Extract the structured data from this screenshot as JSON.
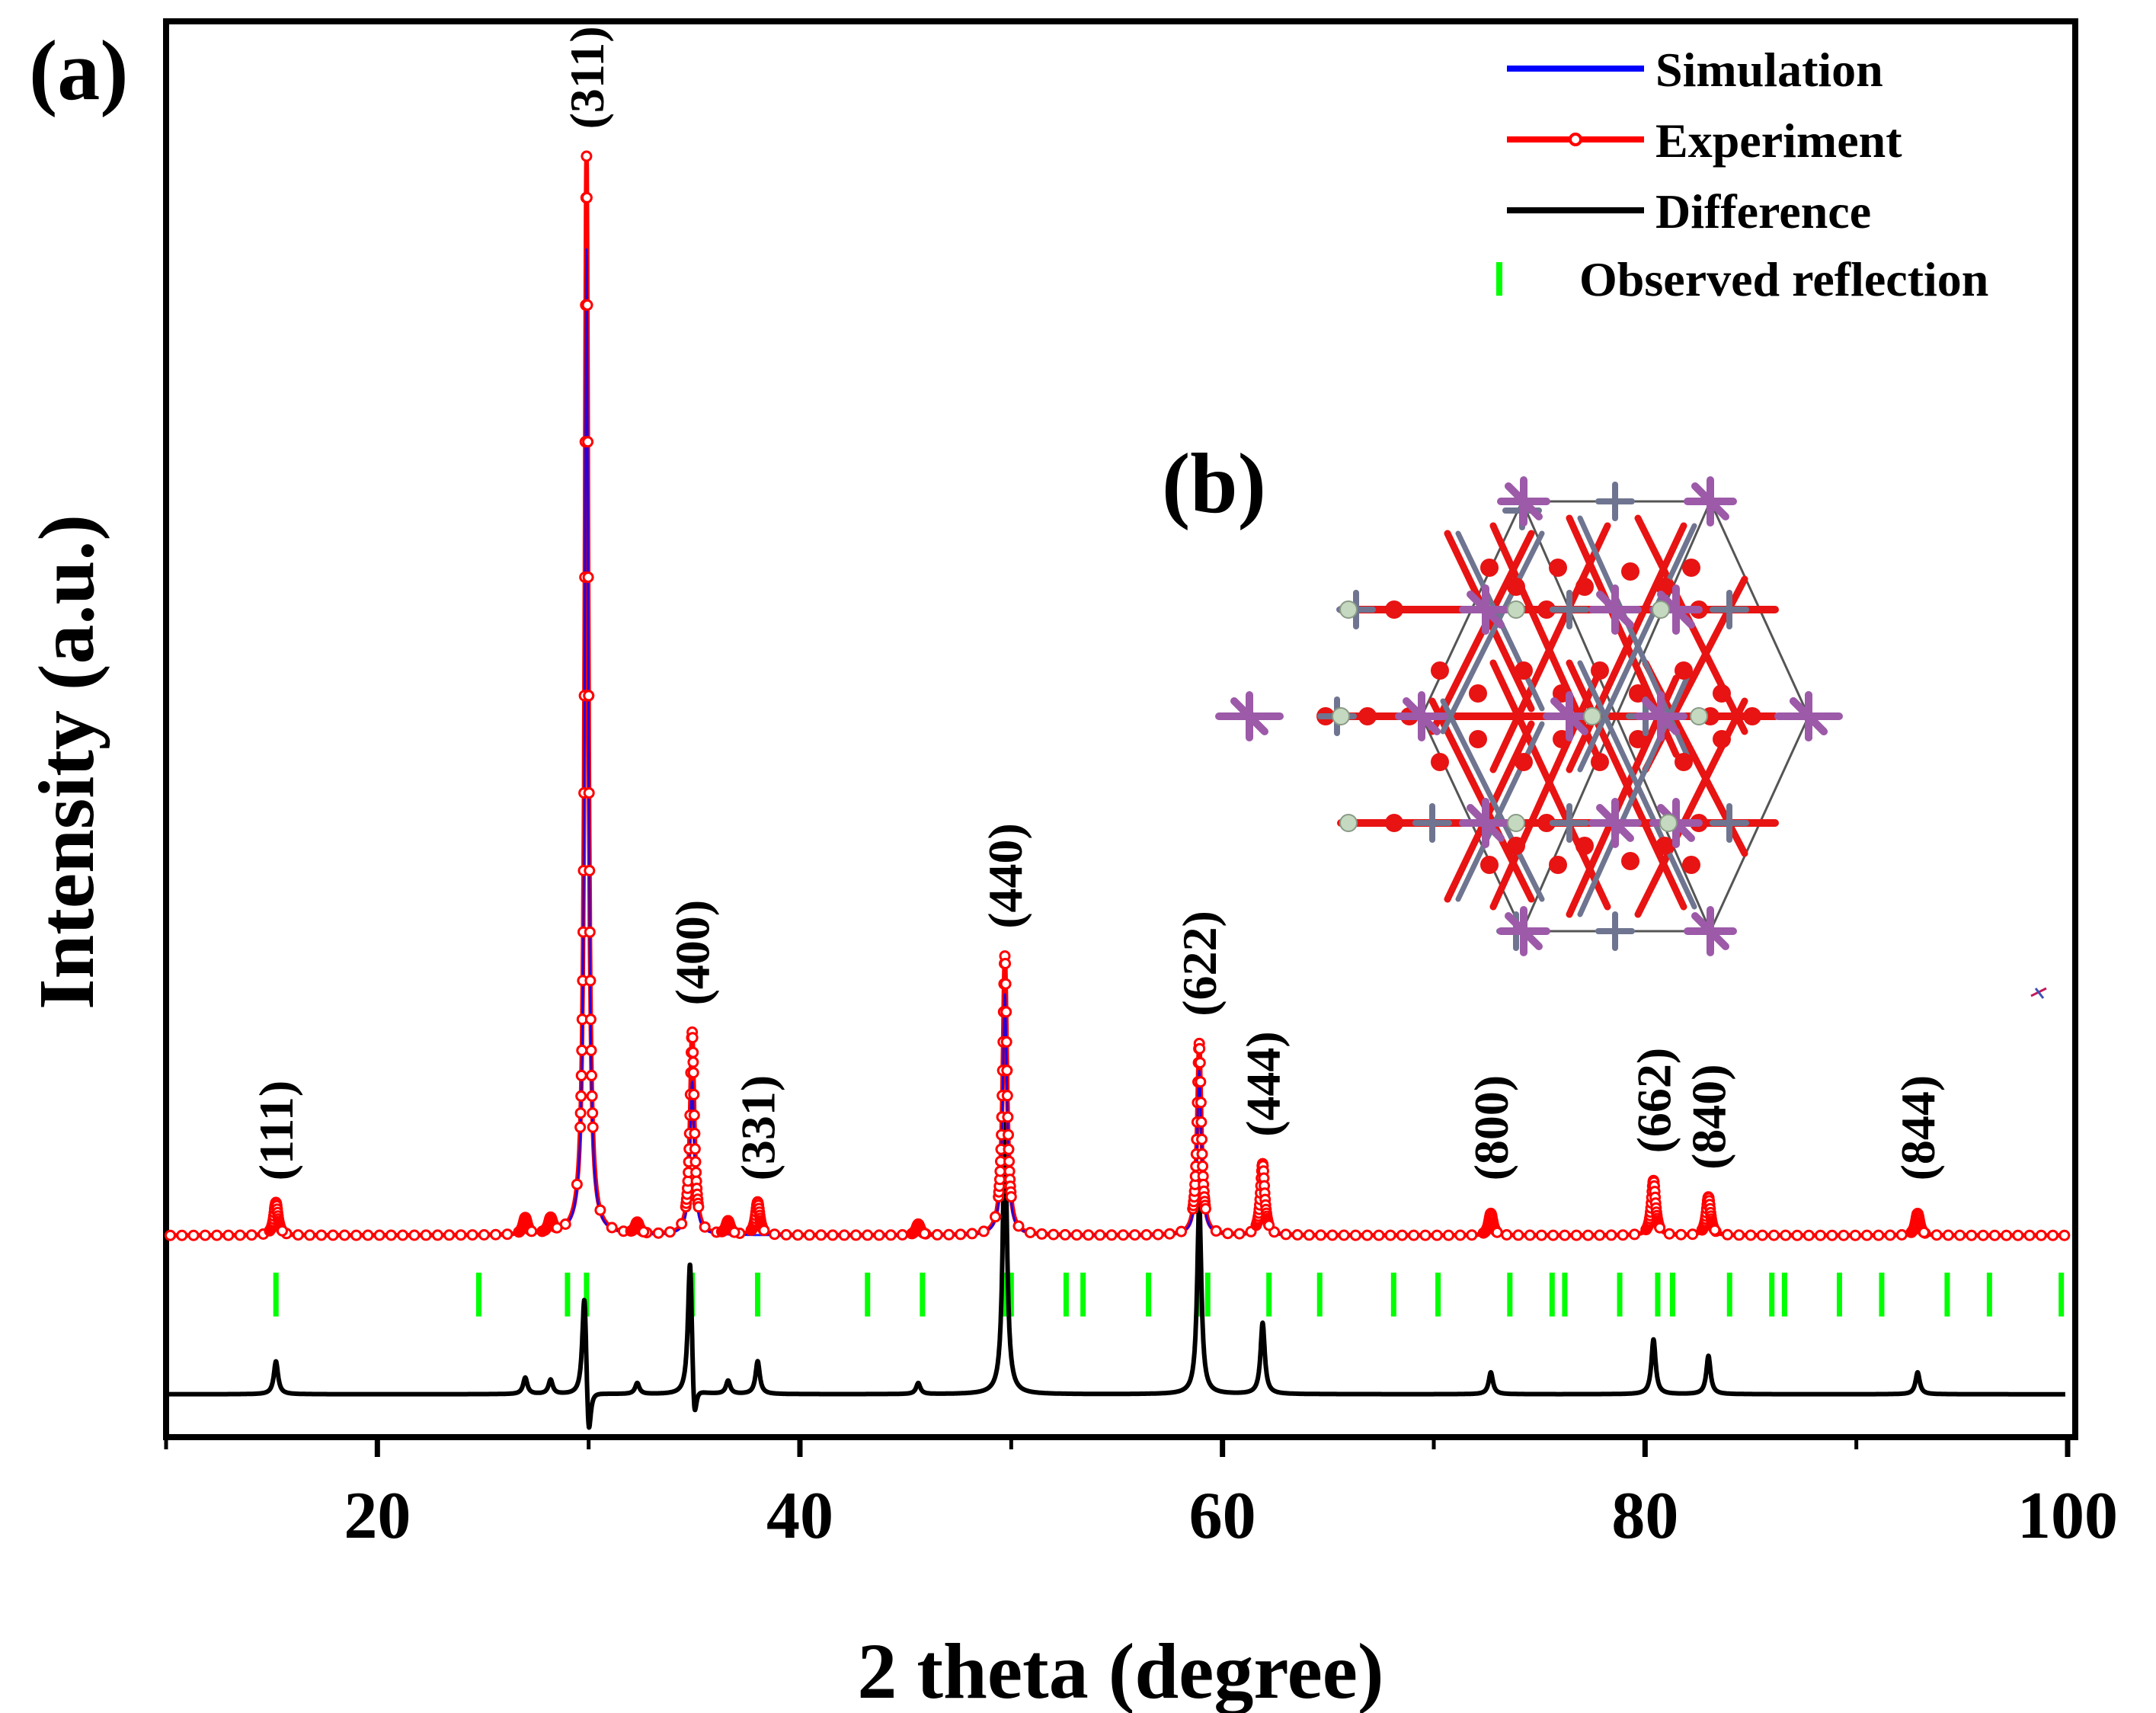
{
  "chart_data": {
    "type": "line",
    "panel_label_a": "(a)",
    "panel_label_b": "(b)",
    "xlabel": "2 theta (degree)",
    "ylabel": "Intensity (a.u.)",
    "xlim": [
      10,
      100
    ],
    "ylim": [
      -18,
      110
    ],
    "x_ticks": [
      20,
      40,
      60,
      80,
      100
    ],
    "x_tick_labels": [
      "20",
      "40",
      "60",
      "80",
      "100"
    ],
    "y_ticks_shown": false,
    "legend": {
      "position": "top-right",
      "entries": [
        {
          "name": "Simulation",
          "color": "#0000ff",
          "marker": "line"
        },
        {
          "name": "Experiment",
          "color": "#ff0000",
          "marker": "line-circle"
        },
        {
          "name": "Difference",
          "color": "#000000",
          "marker": "line"
        },
        {
          "name": "Observed reflection",
          "color": "#00ff00",
          "marker": "vertical-bar"
        }
      ]
    },
    "series": [
      {
        "name": "Experiment",
        "color": "#ff0000",
        "baseline": 0,
        "peaks": [
          {
            "x": 15.2,
            "h": 3.0
          },
          {
            "x": 27.0,
            "h": 1.5
          },
          {
            "x": 28.2,
            "h": 1.3
          },
          {
            "x": 29.9,
            "h": 98.5
          },
          {
            "x": 32.3,
            "h": 1.0
          },
          {
            "x": 34.9,
            "h": 18.5
          },
          {
            "x": 36.6,
            "h": 1.2
          },
          {
            "x": 38.0,
            "h": 3.0
          },
          {
            "x": 45.6,
            "h": 1.0
          },
          {
            "x": 49.7,
            "h": 25.5
          },
          {
            "x": 58.9,
            "h": 17.5
          },
          {
            "x": 61.9,
            "h": 6.5
          },
          {
            "x": 72.7,
            "h": 2.0
          },
          {
            "x": 80.4,
            "h": 5.0
          },
          {
            "x": 83.0,
            "h": 3.5
          },
          {
            "x": 92.9,
            "h": 2.0
          }
        ]
      },
      {
        "name": "Simulation",
        "color": "#0000ff",
        "baseline": 0,
        "peaks": [
          {
            "x": 29.9,
            "h": 90.0
          },
          {
            "x": 34.9,
            "h": 14.0
          },
          {
            "x": 49.7,
            "h": 22.0
          },
          {
            "x": 58.9,
            "h": 15.0
          },
          {
            "x": 61.9,
            "h": 5.5
          }
        ]
      },
      {
        "name": "Difference",
        "color": "#000000",
        "baseline": -14.5,
        "peaks": [
          {
            "x": 15.2,
            "h": 3.0
          },
          {
            "x": 27.0,
            "h": 1.5
          },
          {
            "x": 28.2,
            "h": 1.3
          },
          {
            "x": 29.8,
            "h": 10.0
          },
          {
            "x": 30.0,
            "h": -5.5
          },
          {
            "x": 32.3,
            "h": 1.0
          },
          {
            "x": 34.8,
            "h": 13.0
          },
          {
            "x": 35.0,
            "h": -4.5
          },
          {
            "x": 36.6,
            "h": 1.2
          },
          {
            "x": 38.0,
            "h": 3.0
          },
          {
            "x": 45.6,
            "h": 1.0
          },
          {
            "x": 49.7,
            "h": 25.0
          },
          {
            "x": 58.9,
            "h": 17.5
          },
          {
            "x": 61.9,
            "h": 6.5
          },
          {
            "x": 72.7,
            "h": 2.0
          },
          {
            "x": 80.4,
            "h": 5.0
          },
          {
            "x": 83.0,
            "h": 3.5
          },
          {
            "x": 92.9,
            "h": 2.0
          }
        ]
      }
    ],
    "observed_reflections": {
      "color": "#00ff00",
      "y_top": -3.4,
      "y_bottom": -7.4,
      "x": [
        15.2,
        24.8,
        29.0,
        29.9,
        34.9,
        38.0,
        43.2,
        45.8,
        49.7,
        50.0,
        52.6,
        53.4,
        56.5,
        58.9,
        59.3,
        62.2,
        64.6,
        68.1,
        70.2,
        73.6,
        75.6,
        76.2,
        78.8,
        80.6,
        81.3,
        84.0,
        86.0,
        86.6,
        89.2,
        91.2,
        94.3,
        96.3,
        99.7
      ]
    },
    "annotations": [
      {
        "text": "(111)",
        "x": 15.2,
        "y": 5
      },
      {
        "text": "(311)",
        "x": 29.9,
        "y": 101
      },
      {
        "text": "(400)",
        "x": 34.9,
        "y": 21
      },
      {
        "text": "(331)",
        "x": 38.0,
        "y": 5
      },
      {
        "text": "(440)",
        "x": 49.7,
        "y": 28
      },
      {
        "text": "(622)",
        "x": 58.9,
        "y": 20
      },
      {
        "text": "(444)",
        "x": 61.9,
        "y": 9
      },
      {
        "text": "(800)",
        "x": 72.7,
        "y": 5
      },
      {
        "text": "(662)",
        "x": 80.4,
        "y": 7.5
      },
      {
        "text": "(840)",
        "x": 83.0,
        "y": 6
      },
      {
        "text": "(844)",
        "x": 92.9,
        "y": 5
      }
    ]
  },
  "inset": {
    "caption": "crystal structure",
    "colors": {
      "purple_atom": "#9c5aa8",
      "grey_atom": "#6f7590",
      "pale_atom": "#c4d9bf",
      "red_atom": "#e81313",
      "cell_line": "#555555"
    }
  }
}
